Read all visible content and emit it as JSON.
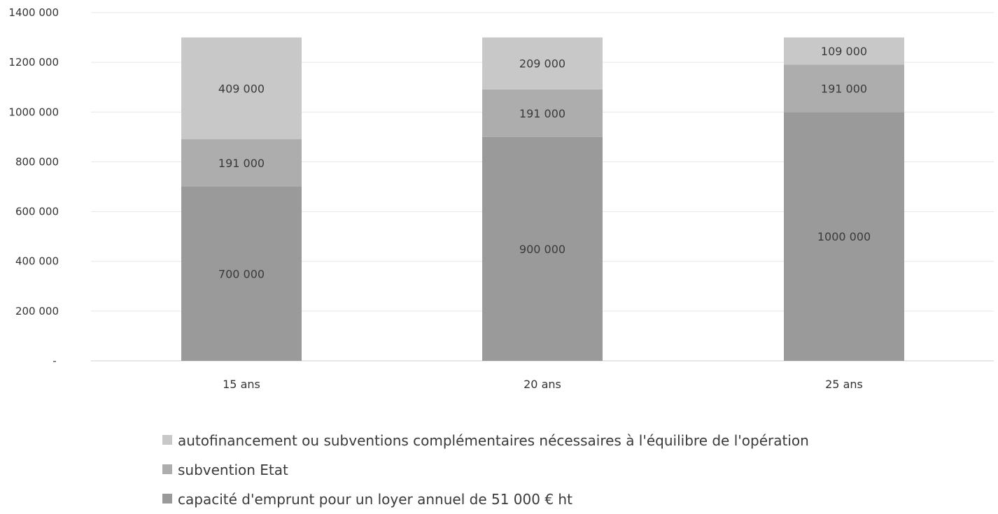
{
  "chart_data": {
    "type": "bar",
    "stacked": true,
    "categories": [
      "15 ans",
      "20 ans",
      "25 ans"
    ],
    "series": [
      {
        "name": "capacité d'emprunt pour un loyer annuel de 51 000 € ht",
        "values": [
          700000,
          900000,
          1000000
        ],
        "labels": [
          "700 000",
          "900 000",
          "1000 000"
        ],
        "color": "#9a9a9a"
      },
      {
        "name": "subvention Etat",
        "values": [
          191000,
          191000,
          191000
        ],
        "labels": [
          "191 000",
          "191 000",
          "191 000"
        ],
        "color": "#adadad"
      },
      {
        "name": "autofinancement ou subventions complémentaires nécessaires à l'équilibre de l'opération",
        "values": [
          409000,
          209000,
          109000
        ],
        "labels": [
          "409 000",
          "209 000",
          "109 000"
        ],
        "color": "#c8c8c8"
      }
    ],
    "yticks": [
      {
        "value": 0,
        "label": "-"
      },
      {
        "value": 200000,
        "label": "200 000"
      },
      {
        "value": 400000,
        "label": "400 000"
      },
      {
        "value": 600000,
        "label": "600 000"
      },
      {
        "value": 800000,
        "label": "800 000"
      },
      {
        "value": 1000000,
        "label": "1000 000"
      },
      {
        "value": 1200000,
        "label": "1200 000"
      },
      {
        "value": 1400000,
        "label": "1400 000"
      }
    ],
    "ylim": [
      0,
      1400000
    ],
    "grid": true,
    "legend_position": "bottom"
  }
}
